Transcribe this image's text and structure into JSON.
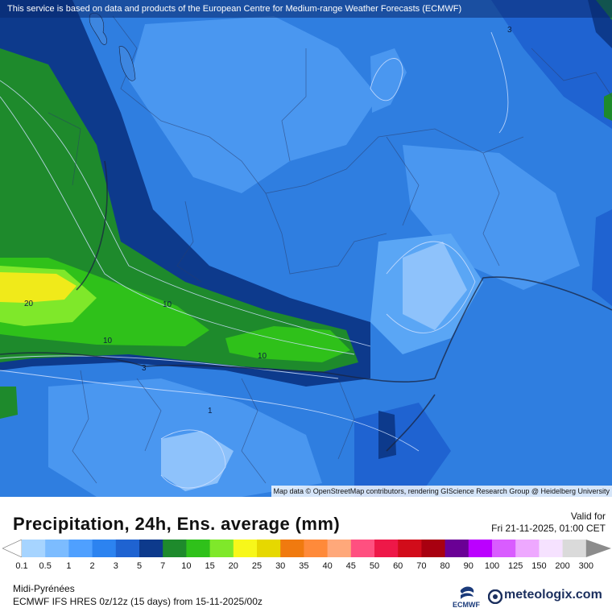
{
  "banner": "This service is based on data and products of the European Centre for Medium-range Weather Forecasts (ECMWF)",
  "attribution": "Map data © OpenStreetMap contributors, rendering GIScience Research Group @ Heidelberg University",
  "contour_labels": [
    "20",
    "10",
    "10",
    "10",
    "3",
    "1",
    "3"
  ],
  "title": "Precipitation, 24h, Ens. average (mm)",
  "valid_label": "Valid for",
  "valid_date": "Fri 21-11-2025, 01:00 CET",
  "scale": {
    "values": [
      "0.1",
      "0.5",
      "1",
      "2",
      "3",
      "5",
      "7",
      "10",
      "15",
      "20",
      "25",
      "30",
      "35",
      "40",
      "45",
      "50",
      "60",
      "70",
      "80",
      "90",
      "100",
      "125",
      "150",
      "200",
      "300"
    ],
    "colors": [
      "#ffffff",
      "#a6d4ff",
      "#7cbcff",
      "#4fa0ff",
      "#2c83f0",
      "#1f63d1",
      "#0d3a8c",
      "#1e8a2c",
      "#2fc11a",
      "#7fe82a",
      "#f7f71a",
      "#e6d800",
      "#f07a0f",
      "#ff8a3a",
      "#ffa87a",
      "#ff5080",
      "#ee1848",
      "#d20c1a",
      "#a80010",
      "#6a0095",
      "#bb00ff",
      "#d95cff",
      "#eea8ff",
      "#f6e2ff",
      "#dadada",
      "#8c8c8c"
    ]
  },
  "region": "Midi-Pyrénées",
  "model": "ECMWF IFS HRES 0z/12z (15 days) from  15-11-2025/00z",
  "ecmwf_logo": "ECMWF",
  "brand": "meteologix.com"
}
